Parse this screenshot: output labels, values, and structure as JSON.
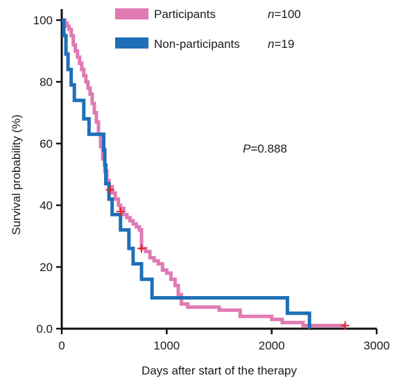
{
  "chart_data": {
    "type": "line",
    "subtype": "kaplan-meier",
    "title": "",
    "xlabel": "Days after start of the therapy",
    "ylabel": "Survival probability (%)",
    "xlim": [
      0,
      3000
    ],
    "ylim": [
      0,
      100
    ],
    "xticks": [
      0,
      1000,
      2000,
      3000
    ],
    "yticks": [
      0,
      20,
      40,
      60,
      80,
      100
    ],
    "xtick_labels": [
      "0",
      "1000",
      "2000",
      "3000"
    ],
    "ytick_labels": [
      "0.0",
      "20",
      "40",
      "60",
      "80",
      "100"
    ],
    "grid": false,
    "legend_position": "top-center",
    "annotation": {
      "p_label": "P",
      "p_value": "=0.888"
    },
    "series": [
      {
        "name": "Participants",
        "n_label": "n",
        "n_value": "=100",
        "color": "#e07ab4",
        "step_points": [
          [
            0,
            100
          ],
          [
            30,
            99
          ],
          [
            50,
            98
          ],
          [
            70,
            97
          ],
          [
            90,
            95
          ],
          [
            110,
            92
          ],
          [
            130,
            90
          ],
          [
            150,
            88
          ],
          [
            170,
            86
          ],
          [
            190,
            84
          ],
          [
            210,
            82
          ],
          [
            230,
            80
          ],
          [
            250,
            78
          ],
          [
            270,
            76
          ],
          [
            290,
            73
          ],
          [
            310,
            70
          ],
          [
            330,
            67
          ],
          [
            350,
            63
          ],
          [
            370,
            59
          ],
          [
            390,
            55
          ],
          [
            410,
            51
          ],
          [
            430,
            48
          ],
          [
            450,
            46
          ],
          [
            480,
            44
          ],
          [
            510,
            42
          ],
          [
            540,
            40
          ],
          [
            560,
            39
          ],
          [
            590,
            37
          ],
          [
            620,
            36
          ],
          [
            650,
            35
          ],
          [
            680,
            34
          ],
          [
            710,
            33
          ],
          [
            740,
            32
          ],
          [
            760,
            26
          ],
          [
            800,
            25
          ],
          [
            840,
            23
          ],
          [
            880,
            22
          ],
          [
            920,
            21
          ],
          [
            960,
            19
          ],
          [
            1000,
            18
          ],
          [
            1040,
            16
          ],
          [
            1080,
            14
          ],
          [
            1110,
            11
          ],
          [
            1140,
            8
          ],
          [
            1200,
            7
          ],
          [
            1300,
            7
          ],
          [
            1400,
            7
          ],
          [
            1500,
            6
          ],
          [
            1600,
            6
          ],
          [
            1700,
            4
          ],
          [
            1800,
            4
          ],
          [
            1900,
            4
          ],
          [
            2000,
            3
          ],
          [
            2100,
            2
          ],
          [
            2200,
            2
          ],
          [
            2300,
            1
          ],
          [
            2400,
            1
          ],
          [
            2500,
            1
          ],
          [
            2600,
            1
          ],
          [
            2700,
            1
          ]
        ],
        "censored": [
          [
            460,
            45
          ],
          [
            560,
            38
          ],
          [
            760,
            26
          ],
          [
            2700,
            1
          ]
        ]
      },
      {
        "name": "Non-participants",
        "n_label": "n",
        "n_value": "=19",
        "color": "#1e6fb8",
        "step_points": [
          [
            0,
            100
          ],
          [
            20,
            95
          ],
          [
            40,
            89
          ],
          [
            60,
            84
          ],
          [
            90,
            79
          ],
          [
            120,
            74
          ],
          [
            210,
            68
          ],
          [
            260,
            63
          ],
          [
            400,
            58
          ],
          [
            410,
            53
          ],
          [
            420,
            47
          ],
          [
            450,
            42
          ],
          [
            480,
            37
          ],
          [
            560,
            32
          ],
          [
            640,
            26
          ],
          [
            680,
            21
          ],
          [
            760,
            16
          ],
          [
            860,
            10
          ],
          [
            2150,
            5
          ],
          [
            2360,
            0
          ]
        ],
        "censored": []
      }
    ]
  }
}
